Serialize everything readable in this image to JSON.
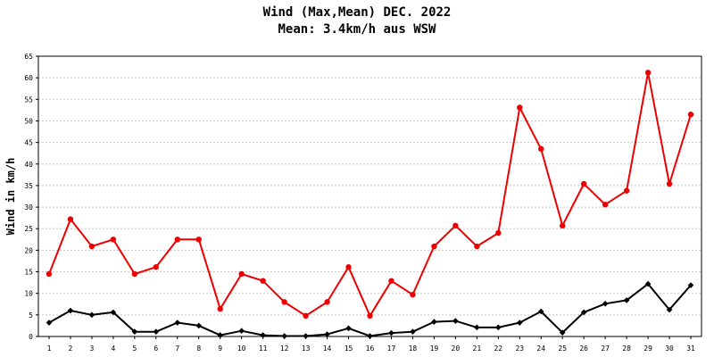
{
  "chart_data": {
    "type": "line",
    "title": "Wind (Max,Mean) DEC. 2022",
    "subtitle": "Mean: 3.4km/h aus WSW",
    "xlabel": "",
    "ylabel": "Wind in km/h",
    "ylim": [
      0,
      65
    ],
    "yticks": [
      0,
      5,
      10,
      15,
      20,
      25,
      30,
      35,
      40,
      45,
      50,
      55,
      60,
      65
    ],
    "grid": true,
    "legend": "none",
    "categories": [
      "1",
      "2",
      "3",
      "4",
      "5",
      "6",
      "7",
      "8",
      "9",
      "10",
      "11",
      "12",
      "13",
      "14",
      "15",
      "16",
      "17",
      "18",
      "19",
      "20",
      "21",
      "22",
      "23",
      "24",
      "25",
      "26",
      "27",
      "28",
      "29",
      "30",
      "31"
    ],
    "series": [
      {
        "color": "#ee0000",
        "values": [
          14.5,
          27.2,
          20.9,
          22.5,
          14.5,
          16.1,
          22.5,
          22.5,
          6.4,
          14.5,
          12.9,
          8.0,
          4.8,
          8.0,
          16.1,
          4.8,
          12.9,
          9.7,
          20.9,
          25.7,
          20.9,
          24.0,
          53.1,
          43.5,
          25.7,
          35.4,
          30.6,
          33.8,
          61.2,
          35.4,
          51.5
        ]
      },
      {
        "color": "#000000",
        "values": [
          3.2,
          6.0,
          5.0,
          5.6,
          1.1,
          1.1,
          3.2,
          2.5,
          0.3,
          1.3,
          0.3,
          0.1,
          0.1,
          0.5,
          1.9,
          0.1,
          0.8,
          1.1,
          3.4,
          3.6,
          2.1,
          2.1,
          3.2,
          5.8,
          0.9,
          5.6,
          7.6,
          8.4,
          12.2,
          6.2,
          11.9
        ]
      }
    ]
  }
}
